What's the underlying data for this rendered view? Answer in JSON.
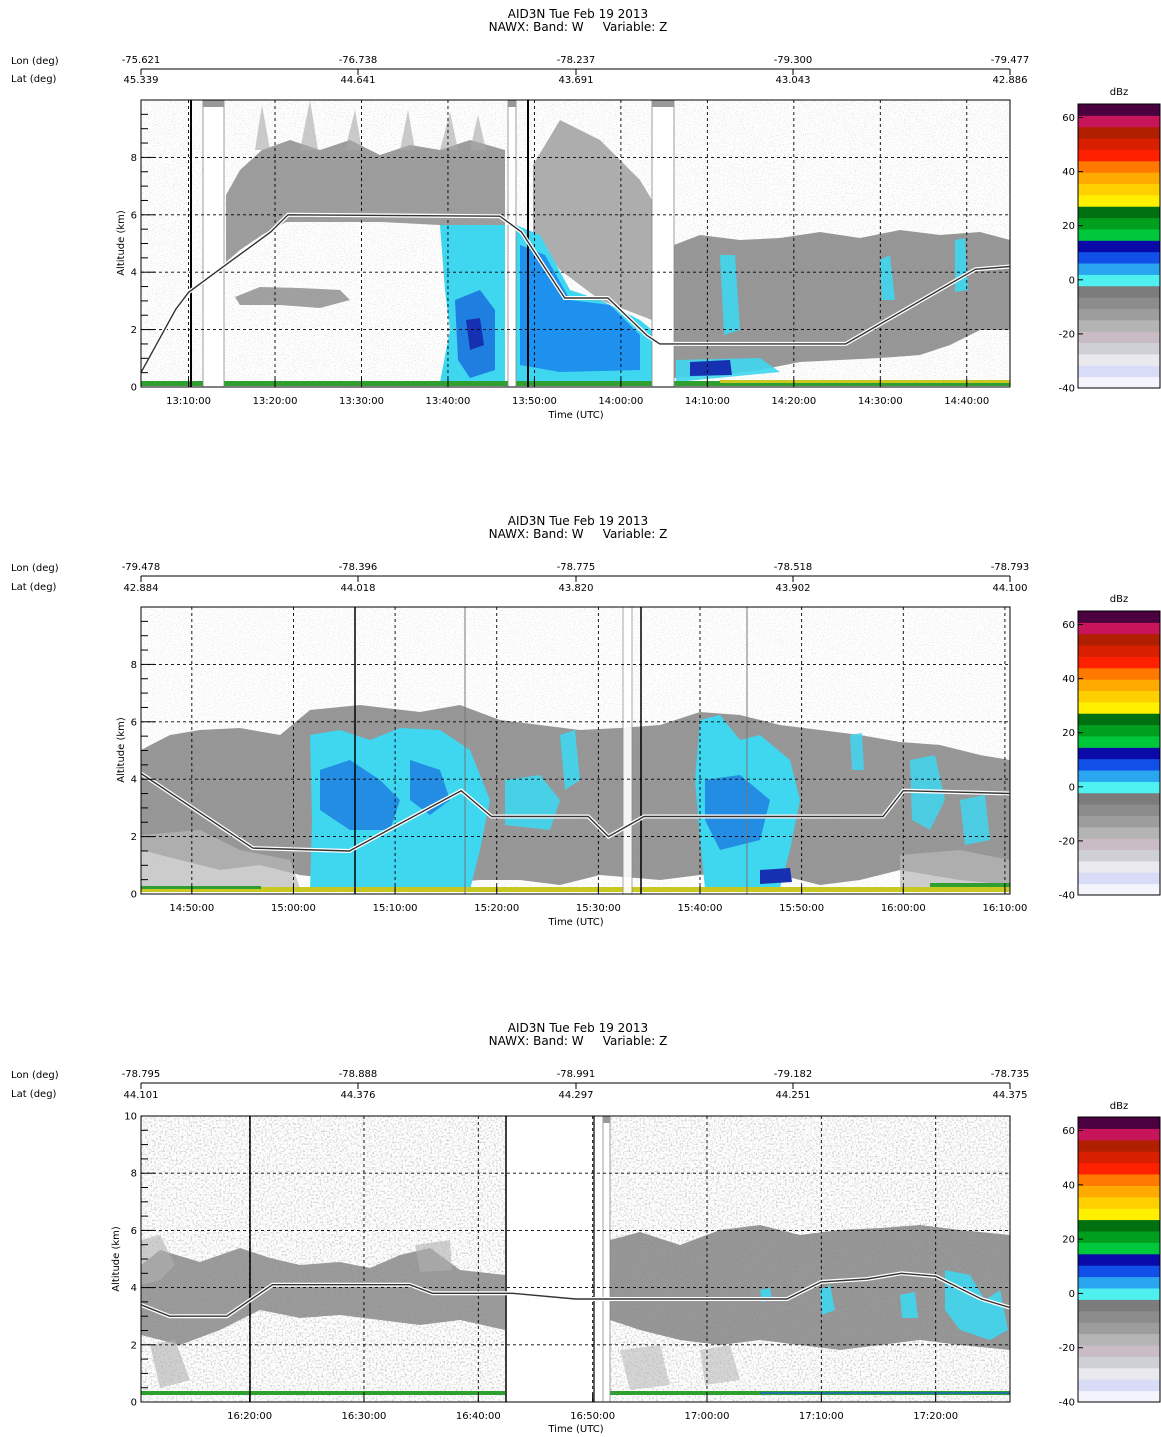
{
  "panels": [
    {
      "title_line1": "AID3N Tue Feb 19 2013",
      "title_line2": "NAWX: Band: W     Variable: Z",
      "lon_label": "Lon (deg)",
      "lat_label": "Lat (deg)",
      "lon_ticks": [
        "-75.621",
        "-76.738",
        "-78.237",
        "-79.300",
        "-79.477"
      ],
      "lat_ticks": [
        "45.339",
        "44.641",
        "43.691",
        "43.043",
        "42.886"
      ],
      "ylabel": "Altitude (km)",
      "xlabel": "Time (UTC)",
      "y_ticks": [
        "0",
        "2",
        "4",
        "6",
        "8"
      ],
      "x_ticks": [
        "13:10:00",
        "13:20:00",
        "13:30:00",
        "13:40:00",
        "13:50:00",
        "14:00:00",
        "14:10:00",
        "14:20:00",
        "14:30:00",
        "14:40:00"
      ],
      "colorbar_label": "dBz",
      "colorbar_ticks": [
        "60",
        "40",
        "20",
        "0",
        "-20",
        "-40"
      ]
    },
    {
      "title_line1": "AID3N Tue Feb 19 2013",
      "title_line2": "NAWX: Band: W     Variable: Z",
      "lon_label": "Lon (deg)",
      "lat_label": "Lat (deg)",
      "lon_ticks": [
        "-79.478",
        "-78.396",
        "-78.775",
        "-78.518",
        "-78.793"
      ],
      "lat_ticks": [
        "42.884",
        "44.018",
        "43.820",
        "43.902",
        "44.100"
      ],
      "ylabel": "Altitude (km)",
      "xlabel": "Time (UTC)",
      "y_ticks": [
        "0",
        "2",
        "4",
        "6",
        "8"
      ],
      "x_ticks": [
        "14:50:00",
        "15:00:00",
        "15:10:00",
        "15:20:00",
        "15:30:00",
        "15:40:00",
        "15:50:00",
        "16:00:00",
        "16:10:00"
      ],
      "colorbar_label": "dBz",
      "colorbar_ticks": [
        "60",
        "40",
        "20",
        "0",
        "-20",
        "-40"
      ]
    },
    {
      "title_line1": "AID3N Tue Feb 19 2013",
      "title_line2": "NAWX: Band: W     Variable: Z",
      "lon_label": "Lon (deg)",
      "lat_label": "Lat (deg)",
      "lon_ticks": [
        "-78.795",
        "-78.888",
        "-78.991",
        "-79.182",
        "-78.735"
      ],
      "lat_ticks": [
        "44.101",
        "44.376",
        "44.297",
        "44.251",
        "44.375"
      ],
      "ylabel": "Altitude (km)",
      "xlabel": "Time (UTC)",
      "y_ticks": [
        "0",
        "2",
        "4",
        "6",
        "8",
        "10"
      ],
      "x_ticks": [
        "16:20:00",
        "16:30:00",
        "16:40:00",
        "16:50:00",
        "17:00:00",
        "17:10:00",
        "17:20:00"
      ],
      "colorbar_label": "dBz",
      "colorbar_ticks": [
        "60",
        "40",
        "20",
        "0",
        "-20",
        "-40"
      ]
    }
  ],
  "colorbar_colors": [
    "#f4f4fc",
    "#d8dcf6",
    "#e9e9ee",
    "#cfcfd6",
    "#c9bcc4",
    "#b4b4b4",
    "#9d9d9d",
    "#8c8c8c",
    "#7c7c7c",
    "#4ff0f0",
    "#2aa6f0",
    "#1050e8",
    "#0a0aa8",
    "#00c83c",
    "#00a01e",
    "#007010",
    "#fff000",
    "#ffd000",
    "#ffaa00",
    "#ff7800",
    "#ff2000",
    "#d82000",
    "#b02000",
    "#c8145a",
    "#4b0040"
  ],
  "chart_data": [
    {
      "type": "heatmap",
      "variable": "Radar reflectivity Z (dBz)",
      "x_range": [
        "13:04:30",
        "14:45:00"
      ],
      "ylim": [
        0,
        10
      ],
      "colorbar_range": [
        -40,
        65
      ],
      "grid": true,
      "aircraft_altitude_km": [
        [
          "13:04:30",
          0.5
        ],
        [
          "13:08:30",
          2.7
        ],
        [
          "13:10:00",
          3.3
        ],
        [
          "13:14:30",
          4.3
        ],
        [
          "13:19:30",
          5.4
        ],
        [
          "13:21:30",
          6.0
        ],
        [
          "13:46:00",
          5.95
        ],
        [
          "13:48:30",
          5.4
        ],
        [
          "13:53:30",
          3.1
        ],
        [
          "13:58:30",
          3.1
        ],
        [
          "14:03:00",
          1.8
        ],
        [
          "14:04:30",
          1.5
        ],
        [
          "14:26:00",
          1.5
        ],
        [
          "14:37:30",
          3.5
        ],
        [
          "14:41:00",
          4.1
        ],
        [
          "14:45:00",
          4.2
        ]
      ]
    },
    {
      "type": "heatmap",
      "variable": "Radar reflectivity Z (dBz)",
      "x_range": [
        "14:45:00",
        "16:10:30"
      ],
      "ylim": [
        0,
        10
      ],
      "colorbar_range": [
        -40,
        65
      ],
      "grid": true,
      "aircraft_altitude_km": [
        [
          "14:45:00",
          4.2
        ],
        [
          "14:56:00",
          1.6
        ],
        [
          "15:05:30",
          1.5
        ],
        [
          "15:16:30",
          3.6
        ],
        [
          "15:19:30",
          2.7
        ],
        [
          "15:29:00",
          2.7
        ],
        [
          "15:31:00",
          2.0
        ],
        [
          "15:34:30",
          2.7
        ],
        [
          "15:58:00",
          2.7
        ],
        [
          "16:00:00",
          3.6
        ],
        [
          "16:10:30",
          3.5
        ]
      ]
    },
    {
      "type": "heatmap",
      "variable": "Radar reflectivity Z (dBz)",
      "x_range": [
        "16:10:30",
        "17:26:30"
      ],
      "ylim": [
        0,
        10
      ],
      "colorbar_range": [
        -40,
        65
      ],
      "grid": true,
      "aircraft_altitude_km": [
        [
          "16:10:30",
          3.4
        ],
        [
          "16:13:00",
          3.0
        ],
        [
          "16:18:00",
          3.0
        ],
        [
          "16:22:00",
          4.1
        ],
        [
          "16:34:00",
          4.1
        ],
        [
          "16:36:00",
          3.8
        ],
        [
          "16:43:00",
          3.8
        ],
        [
          "16:48:30",
          3.6
        ],
        [
          "16:53:00",
          3.6
        ],
        [
          "16:58:00",
          3.6
        ],
        [
          "17:07:00",
          3.6
        ],
        [
          "17:10:00",
          4.2
        ],
        [
          "17:14:00",
          4.3
        ],
        [
          "17:17:00",
          4.5
        ],
        [
          "17:20:00",
          4.4
        ],
        [
          "17:24:00",
          3.6
        ],
        [
          "17:26:30",
          3.3
        ]
      ]
    }
  ]
}
